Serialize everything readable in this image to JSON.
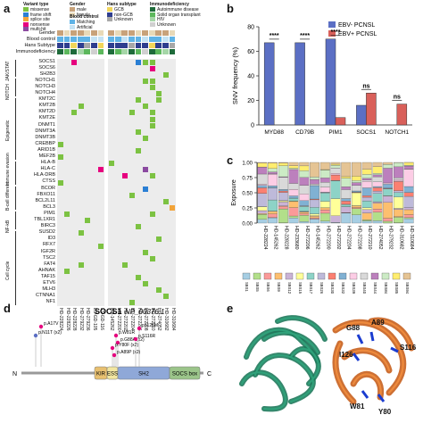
{
  "panels": {
    "a": "a",
    "b": "b",
    "c": "c",
    "d": "d",
    "e": "e"
  },
  "panel_a": {
    "legend": {
      "variant_title": "Variant type",
      "variant_items": [
        {
          "label": "missense",
          "color": "#7cc242"
        },
        {
          "label": "frame shift",
          "color": "#2a7fd4"
        },
        {
          "label": "splice site",
          "color": "#f2a43a"
        },
        {
          "label": "nonsense",
          "color": "#e6007e"
        },
        {
          "label": "multi-hit",
          "color": "#8b4aa0"
        }
      ],
      "gender_title": "Gender",
      "gender_items": [
        {
          "label": "male",
          "color": "#c8a27a"
        },
        {
          "label": "female",
          "color": "#e8d9b8"
        }
      ],
      "blood_title": "Blood control",
      "blood_items": [
        {
          "label": "Matching",
          "color": "#5fb3e6"
        },
        {
          "label": "Artificial",
          "color": "#c5e3f4"
        }
      ],
      "hans_title": "Hans subtype",
      "hans_items": [
        {
          "label": "GCB",
          "color": "#f2d65a"
        },
        {
          "label": "non-GCB",
          "color": "#2f3e8f"
        },
        {
          "label": "Unknown",
          "color": "#a8a8a8"
        }
      ],
      "immuno_title": "Immunodeficiency",
      "immuno_items": [
        {
          "label": "Autoimmune disease",
          "color": "#1e6b3a"
        },
        {
          "label": "Solid organ transplant",
          "color": "#5cb85c"
        },
        {
          "label": "HIV",
          "color": "#a5d6a7"
        },
        {
          "label": "Unknown",
          "color": "#d0d0d0"
        }
      ]
    },
    "annotation_rows": [
      "Gender",
      "Blood control",
      "Hans Subtype",
      "Immunodeficiency"
    ],
    "genes": [
      "SOCS1",
      "SOCS6",
      "SH2B3",
      "NOTCH1",
      "NOTCH3",
      "NOTCH4",
      "KMT2C",
      "KMT2B",
      "KMT2D",
      "KMT2E",
      "DNMT1",
      "DNMT3A",
      "DNMT3B",
      "CREBBP",
      "ARID1B",
      "MEF2B",
      "HLA-B",
      "HLA-C",
      "HLA-DRB",
      "CTSS",
      "BCOR",
      "FBXO11",
      "BCL2L11",
      "BCL3",
      "PIM1",
      "TBL1XR1",
      "BIRC3",
      "SUSD2",
      "ID3",
      "RFX7",
      "IGF2R",
      "TSC2",
      "FAT4",
      "AHNAK",
      "TAF15",
      "ETV6",
      "MLH3",
      "CTNNA1",
      "NF1"
    ],
    "groups": [
      {
        "label": "JAK/STAT",
        "row_start": 0
      },
      {
        "label": "NOTCH",
        "row_start": 3
      },
      {
        "label": "Epigenetic",
        "row_start": 6
      },
      {
        "label": "Immune evasion",
        "row_start": 16
      },
      {
        "label": "B-cell different.",
        "row_start": 20
      },
      {
        "label": "NF-kB",
        "row_start": 24
      },
      {
        "label": "Cell cycle",
        "row_start": 27
      }
    ],
    "samples_left": [
      "HD-228224",
      "HD-228226",
      "HD-228228",
      "HD-279232",
      "HD-279236",
      "LS-GD-105",
      "LS-GD-116"
    ],
    "samples_right": [
      "HD-145262",
      "HD-272200",
      "HD-272202",
      "HD-272204",
      "HD-272206",
      "HD-272208",
      "HD-272210",
      "HD-274052",
      "HD-310682",
      "HD-310684"
    ]
  },
  "panel_b": {
    "legend": [
      {
        "label": "EBV- PCNSL",
        "color": "#5b6fc4"
      },
      {
        "label": "EBV+ PCNSL",
        "color": "#d9605a"
      }
    ],
    "chart_data": {
      "type": "bar",
      "categories": [
        "MYD88",
        "CD79B",
        "PIM1",
        "SOCS1",
        "NOTCH1"
      ],
      "series": [
        {
          "name": "EBV- PCNSL",
          "values": [
            67,
            67,
            70,
            16,
            0
          ]
        },
        {
          "name": "EBV+ PCNSL",
          "values": [
            0,
            0,
            6,
            26,
            17
          ]
        }
      ],
      "significance": [
        "****",
        "****",
        "****",
        "ns",
        "ns"
      ],
      "ylabel": "SNV frequency (%)",
      "yticks": [
        "0",
        "20",
        "40",
        "60",
        "80"
      ],
      "ylim": [
        0,
        80
      ]
    }
  },
  "panel_c": {
    "ylabel": "Exposure",
    "yticks": [
      "0.00",
      "0.25",
      "0.50",
      "0.75",
      "1.00"
    ],
    "samples": [
      "HD-228224",
      "HD-145262",
      "HD-228228",
      "HD-233680",
      "HD-272206",
      "HD-145262",
      "HD-272200",
      "HD-272202",
      "HD-272204",
      "HD-272208",
      "HD-272210",
      "HD-274052",
      "HD-279232",
      "HD-310682",
      "HD-310684"
    ],
    "signature_legend": [
      {
        "label": "SBS1",
        "color": "#a6cee3"
      },
      {
        "label": "SBS5",
        "color": "#b2df8a"
      },
      {
        "label": "SBS6",
        "color": "#fb9a99"
      },
      {
        "label": "SBS9",
        "color": "#fdbf6f"
      },
      {
        "label": "SBS12",
        "color": "#cab2d6"
      },
      {
        "label": "SBS15",
        "color": "#ffff99"
      },
      {
        "label": "SBS17",
        "color": "#8dd3c7"
      },
      {
        "label": "SBS26",
        "color": "#bebada"
      },
      {
        "label": "SBS30",
        "color": "#fb8072"
      },
      {
        "label": "SBS32",
        "color": "#80b1d3"
      },
      {
        "label": "SBS39",
        "color": "#fccde5"
      },
      {
        "label": "SBS40",
        "color": "#d9d9d9"
      },
      {
        "label": "SBS44",
        "color": "#bc80bd"
      },
      {
        "label": "SBS84",
        "color": "#ccebc5"
      },
      {
        "label": "SBS85",
        "color": "#ffed6f"
      },
      {
        "label": "SBS94",
        "color": "#e5c494"
      }
    ]
  },
  "panel_d": {
    "title": "SOCS1",
    "accession": "NP_00376.1",
    "mutations_top": [
      "p.A17V",
      "p.N11T (x2)",
      "p.W81R",
      "p.G88A (x2)",
      "p.Y80F (x2)",
      "p.A89P (x2)",
      "p.I126M",
      "p.S116R"
    ],
    "domains": [
      "KIR",
      "ESS",
      "SH2",
      "SOCS box"
    ],
    "n_label": "N",
    "c_label": "C"
  },
  "panel_e": {
    "residues": [
      "G88",
      "A89",
      "I126",
      "S116",
      "W81",
      "Y80"
    ]
  }
}
